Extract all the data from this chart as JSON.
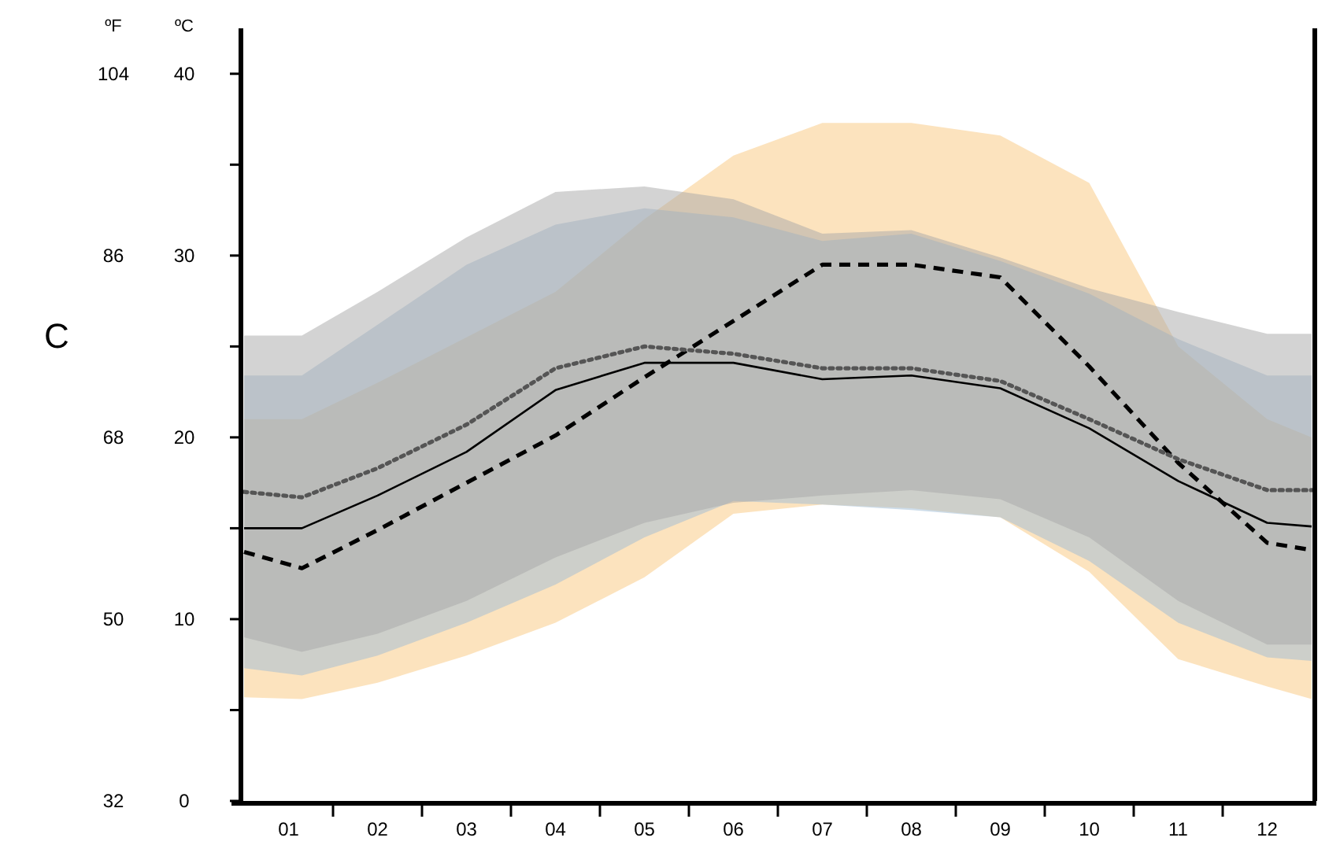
{
  "chart_data": {
    "type": "line",
    "title": "C",
    "ylabel": "ºC",
    "y2label": "ºF",
    "x": [
      0.5,
      1.15,
      2,
      3,
      4,
      5,
      6,
      7,
      8,
      9,
      10,
      11,
      12,
      12.5
    ],
    "xlim": [
      0.5,
      12.5
    ],
    "xticks": [
      {
        "value": 1,
        "label": "01"
      },
      {
        "value": 2,
        "label": "02"
      },
      {
        "value": 3,
        "label": "03"
      },
      {
        "value": 4,
        "label": "04"
      },
      {
        "value": 5,
        "label": "05"
      },
      {
        "value": 6,
        "label": "06"
      },
      {
        "value": 7,
        "label": "07"
      },
      {
        "value": 8,
        "label": "08"
      },
      {
        "value": 9,
        "label": "09"
      },
      {
        "value": 10,
        "label": "10"
      },
      {
        "value": 11,
        "label": "11"
      },
      {
        "value": 12,
        "label": "12"
      },
      {
        "value": 1.5,
        "label": null
      },
      {
        "value": 2.5,
        "label": null
      },
      {
        "value": 3.5,
        "label": null
      },
      {
        "value": 4.5,
        "label": null
      },
      {
        "value": 5.5,
        "label": null
      },
      {
        "value": 6.5,
        "label": null
      },
      {
        "value": 7.5,
        "label": null
      },
      {
        "value": 8.5,
        "label": null
      },
      {
        "value": 9.5,
        "label": null
      },
      {
        "value": 10.5,
        "label": null
      },
      {
        "value": 11.5,
        "label": null
      }
    ],
    "ylim": [
      0,
      42.5
    ],
    "yticks": [
      0,
      {
        "value": 5,
        "label": null
      },
      10,
      {
        "value": 15,
        "label": null
      },
      20,
      {
        "value": 25,
        "label": null
      },
      30,
      {
        "value": 35,
        "label": null
      },
      40
    ],
    "y2lim": [
      32,
      108.5
    ],
    "y2ticks": [
      32,
      50,
      68,
      86,
      104
    ],
    "marker": "none",
    "grid": false,
    "series": [
      {
        "color": "#f9c77e",
        "values": [
          null,
          null,
          null,
          null,
          null,
          null,
          null,
          null,
          null,
          null,
          null,
          null,
          null,
          null
        ],
        "lower": [
          5.7,
          5.6,
          6.5,
          8.0,
          9.8,
          12.3,
          15.8,
          16.3,
          16.1,
          15.6,
          12.6,
          7.8,
          6.3,
          5.6
        ],
        "upper": [
          21,
          21,
          23,
          25.5,
          28,
          32,
          35.5,
          37.3,
          37.3,
          36.6,
          34.0,
          25,
          21,
          20
        ]
      },
      {
        "color": "#9dbbd6",
        "values": [
          null,
          null,
          null,
          null,
          null,
          null,
          null,
          null,
          null,
          null,
          null,
          null,
          null,
          null
        ],
        "lower": [
          7.3,
          6.9,
          8.0,
          9.8,
          11.9,
          14.5,
          16.5,
          16.3,
          16.0,
          15.6,
          13.2,
          9.8,
          7.9,
          7.7
        ],
        "upper": [
          23.4,
          23.4,
          26.2,
          29.5,
          31.7,
          32.6,
          32.1,
          30.8,
          31.2,
          29.7,
          27.9,
          25.4,
          23.4,
          23.4
        ]
      },
      {
        "color": "#a8a8a8",
        "values": [
          null,
          null,
          null,
          null,
          null,
          null,
          null,
          null,
          null,
          null,
          null,
          null,
          null,
          null
        ],
        "lower": [
          9.0,
          8.2,
          9.2,
          11.0,
          13.4,
          15.3,
          16.4,
          16.8,
          17.1,
          16.6,
          14.5,
          11.0,
          8.6,
          8.6
        ],
        "upper": [
          25.6,
          25.6,
          28.0,
          31.0,
          33.5,
          33.8,
          33.1,
          31.2,
          31.4,
          29.9,
          28.2,
          26.9,
          25.7,
          25.7
        ]
      },
      {
        "color": "#000000",
        "line_style": "dashed",
        "values": [
          13.7,
          12.8,
          14.9,
          17.5,
          20.1,
          23.3,
          26.4,
          29.5,
          29.5,
          28.8,
          23.9,
          18.6,
          14.2,
          13.8
        ]
      },
      {
        "color": "#000000",
        "line_style": "solid",
        "values": [
          15.0,
          15.0,
          16.8,
          19.2,
          22.6,
          24.1,
          24.1,
          23.2,
          23.4,
          22.7,
          20.5,
          17.6,
          15.3,
          15.1
        ]
      },
      {
        "color": "#555555",
        "line_style": "dotted",
        "values": [
          17.0,
          16.7,
          18.3,
          20.7,
          23.8,
          25.0,
          24.6,
          23.8,
          23.8,
          23.1,
          21.0,
          18.8,
          17.1,
          17.1
        ]
      }
    ]
  }
}
